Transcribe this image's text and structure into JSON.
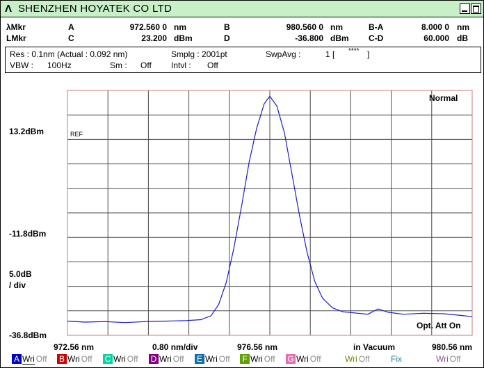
{
  "window": {
    "icon": "lambda-logo-icon",
    "title": "SHENZHEN HOYATEK CO LTD"
  },
  "markers": {
    "row1": {
      "label": "λMkr",
      "a_label": "A",
      "a_value": "972.560 0",
      "a_unit": "nm",
      "b_label": "B",
      "b_value": "980.560 0",
      "b_unit": "nm",
      "ba_label": "B-A",
      "ba_value": "8.000 0",
      "ba_unit": "nm"
    },
    "row2": {
      "label": "LMkr",
      "c_label": "C",
      "c_value": "23.200",
      "c_unit": "dBm",
      "d_label": "D",
      "d_value": "-36.800",
      "d_unit": "dBm",
      "cd_label": "C-D",
      "cd_value": "60.000",
      "cd_unit": "dB"
    }
  },
  "settings": {
    "res": "Res :  0.1nm  (Actual :  0.092 nm)",
    "smplg": "Smplg :   2001pt",
    "swpavg_label": "SwpAvg :",
    "swpavg_value": "1 [",
    "swpavg_stars": "****",
    "swpavg_close": "]",
    "vbw_label": "VBW :",
    "vbw_value": "100Hz",
    "sm_label": "Sm :",
    "sm_value": "Off",
    "intvl_label": "Intvl :",
    "intvl_value": "Off"
  },
  "plot": {
    "mode": "Normal",
    "ref_label": "REF",
    "opt_att": "Opt. Att On",
    "y_top": "13.2dBm",
    "y_mid": "-11.8dBm",
    "y_scale_1": "5.0dB",
    "y_scale_2": "/ div",
    "y_bottom": "-36.8dBm",
    "x_start": "972.56 nm",
    "x_div": "0.80 nm/div",
    "x_center": "976.56 nm",
    "x_medium": "in Vacuum",
    "x_stop": "980.56 nm",
    "colors": {
      "grid": "#4a4a4a",
      "border": "#c87a7a",
      "trace": "#1a1acc"
    }
  },
  "chart_data": {
    "type": "line",
    "title": "",
    "xlabel": "",
    "ylabel": "",
    "xlim": [
      972.56,
      980.56
    ],
    "ylim": [
      -36.8,
      13.2
    ],
    "grid": true,
    "series": [
      {
        "x": [
          972.56,
          972.9,
          973.3,
          973.7,
          974.1,
          974.5,
          974.9,
          975.2,
          975.4,
          975.55,
          975.7,
          975.85,
          976.0,
          976.15,
          976.3,
          976.45,
          976.56,
          976.7,
          976.85,
          977.0,
          977.15,
          977.3,
          977.45,
          977.6,
          977.8,
          978.0,
          978.3,
          978.5,
          978.7,
          978.9,
          979.2,
          979.6,
          980.0,
          980.3,
          980.56
        ],
        "y": [
          -33.9,
          -34.1,
          -34.0,
          -34.2,
          -34.0,
          -33.9,
          -33.8,
          -33.6,
          -32.8,
          -30.5,
          -26.0,
          -19.0,
          -10.5,
          -1.5,
          5.5,
          10.5,
          12.0,
          10.0,
          4.5,
          -4.0,
          -12.5,
          -20.0,
          -25.8,
          -29.2,
          -31.2,
          -32.0,
          -32.3,
          -32.5,
          -31.4,
          -32.1,
          -32.5,
          -32.3,
          -32.4,
          -32.7,
          -33.0
        ]
      }
    ]
  },
  "trace_bar": [
    {
      "key": "A",
      "color": "#0000c0",
      "write": "Wri",
      "off": "Off"
    },
    {
      "key": "B",
      "color": "#d00000",
      "write": "Wri",
      "off": "Off"
    },
    {
      "key": "C",
      "color": "#00d8a0",
      "write": "Wri",
      "off": "Off"
    },
    {
      "key": "D",
      "color": "#800080",
      "write": "Wri",
      "off": "Off"
    },
    {
      "key": "E",
      "color": "#1070a8",
      "write": "Wri",
      "off": "Off"
    },
    {
      "key": "F",
      "color": "#60a000",
      "write": "Wri",
      "off": "Off"
    },
    {
      "key": "G",
      "color": "#e070b0",
      "write": "Wri",
      "off": "Off"
    },
    {
      "key": "",
      "color": "#808000",
      "write": "Wri",
      "off": "Off"
    },
    {
      "key": "",
      "color": "#2080a0",
      "write": "Fix",
      "off": ""
    },
    {
      "key": "",
      "color": "#9050a0",
      "write": "Wri",
      "off": "Off"
    }
  ]
}
